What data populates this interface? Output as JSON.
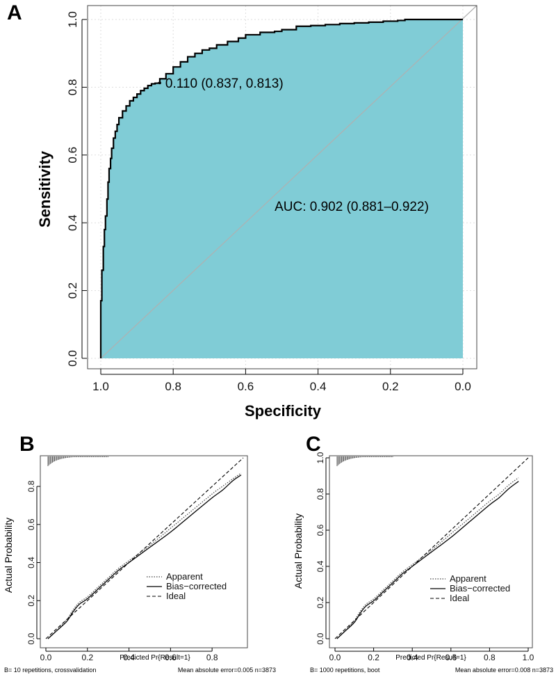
{
  "chart_data": [
    {
      "panel": "A",
      "type": "line",
      "subtype": "roc",
      "title": "",
      "xlabel": "Specificity",
      "ylabel": "Sensitivity",
      "xlim": [
        1.0,
        0.0
      ],
      "ylim": [
        0.0,
        1.0
      ],
      "x_ticks": [
        "1.0",
        "0.8",
        "0.6",
        "0.4",
        "0.2",
        "0.0"
      ],
      "y_ticks": [
        "0.0",
        "0.2",
        "0.4",
        "0.6",
        "0.8",
        "1.0"
      ],
      "grid": true,
      "fill_color": "#80ccd6",
      "diagonal_color": "#b0b0b0",
      "series": [
        {
          "name": "ROC",
          "x": [
            1.0,
            0.997,
            0.993,
            0.99,
            0.987,
            0.983,
            0.98,
            0.977,
            0.973,
            0.97,
            0.965,
            0.96,
            0.955,
            0.95,
            0.94,
            0.93,
            0.92,
            0.91,
            0.9,
            0.89,
            0.88,
            0.87,
            0.86,
            0.85,
            0.84,
            0.837,
            0.82,
            0.8,
            0.78,
            0.76,
            0.74,
            0.72,
            0.7,
            0.68,
            0.65,
            0.62,
            0.6,
            0.56,
            0.52,
            0.5,
            0.46,
            0.42,
            0.38,
            0.34,
            0.3,
            0.26,
            0.22,
            0.18,
            0.16,
            0.14,
            0.1,
            0.05,
            0.0
          ],
          "y": [
            0.0,
            0.17,
            0.26,
            0.33,
            0.38,
            0.42,
            0.47,
            0.52,
            0.56,
            0.59,
            0.62,
            0.65,
            0.67,
            0.69,
            0.71,
            0.73,
            0.745,
            0.76,
            0.77,
            0.78,
            0.79,
            0.797,
            0.805,
            0.81,
            0.812,
            0.813,
            0.825,
            0.84,
            0.86,
            0.875,
            0.89,
            0.9,
            0.91,
            0.915,
            0.925,
            0.935,
            0.945,
            0.955,
            0.962,
            0.965,
            0.97,
            0.98,
            0.982,
            0.985,
            0.988,
            0.99,
            0.992,
            0.995,
            0.997,
            1.0,
            1.0,
            1.0,
            1.0
          ]
        }
      ],
      "annotations": {
        "threshold": "0.110 (0.837, 0.813)",
        "threshold_point": [
          0.837,
          0.813
        ],
        "auc": "AUC: 0.902 (0.881–0.922)",
        "auc_anchor": [
          0.52,
          0.45
        ]
      }
    },
    {
      "panel": "B",
      "type": "line",
      "subtype": "calibration",
      "xlabel": "Predicted Pr{Result=1}",
      "ylabel": "Actual Probability",
      "xlim": [
        0.0,
        0.95
      ],
      "ylim": [
        0.0,
        0.95
      ],
      "x_ticks": [
        "0.0",
        "0.2",
        "0.4",
        "0.6",
        "0.8"
      ],
      "y_ticks": [
        "0.0",
        "0.2",
        "0.4",
        "0.6",
        "0.8"
      ],
      "legend_position": "bottom-right",
      "legend": [
        "Apparent",
        "Bias−corrected",
        "Ideal"
      ],
      "series": [
        {
          "name": "Apparent",
          "x": [
            0.01,
            0.05,
            0.1,
            0.13,
            0.16,
            0.2,
            0.25,
            0.3,
            0.35,
            0.4,
            0.5,
            0.6,
            0.7,
            0.8,
            0.85,
            0.9,
            0.94
          ],
          "y": [
            0.0,
            0.04,
            0.1,
            0.15,
            0.19,
            0.22,
            0.27,
            0.32,
            0.37,
            0.41,
            0.49,
            0.58,
            0.67,
            0.76,
            0.8,
            0.84,
            0.87
          ]
        },
        {
          "name": "Bias−corrected",
          "x": [
            0.01,
            0.05,
            0.1,
            0.13,
            0.16,
            0.2,
            0.25,
            0.3,
            0.35,
            0.4,
            0.5,
            0.6,
            0.7,
            0.8,
            0.85,
            0.9,
            0.94
          ],
          "y": [
            0.0,
            0.04,
            0.09,
            0.14,
            0.18,
            0.21,
            0.26,
            0.31,
            0.36,
            0.4,
            0.48,
            0.56,
            0.65,
            0.74,
            0.78,
            0.83,
            0.86
          ]
        },
        {
          "name": "Ideal",
          "x": [
            0.0,
            0.95
          ],
          "y": [
            0.0,
            0.95
          ]
        }
      ],
      "rug": "0.0–0.3",
      "footer_left": "B= 10 repetitions, crossvalidation",
      "footer_right": "Mean absolute error=0.005 n=3873"
    },
    {
      "panel": "C",
      "type": "line",
      "subtype": "calibration",
      "xlabel": "Predicted Pr{Result=1}",
      "ylabel": "Actual Probability",
      "xlim": [
        0.0,
        1.0
      ],
      "ylim": [
        0.0,
        1.0
      ],
      "x_ticks": [
        "0.0",
        "0.2",
        "0.4",
        "0.6",
        "0.8",
        "1.0"
      ],
      "y_ticks": [
        "0.0",
        "0.2",
        "0.4",
        "0.6",
        "0.8",
        "1.0"
      ],
      "legend_position": "bottom-right",
      "legend": [
        "Apparent",
        "Bias−corrected",
        "Ideal"
      ],
      "series": [
        {
          "name": "Apparent",
          "x": [
            0.01,
            0.05,
            0.1,
            0.13,
            0.16,
            0.2,
            0.25,
            0.3,
            0.35,
            0.4,
            0.5,
            0.6,
            0.7,
            0.8,
            0.85,
            0.9,
            0.95
          ],
          "y": [
            0.0,
            0.04,
            0.1,
            0.15,
            0.19,
            0.22,
            0.27,
            0.32,
            0.37,
            0.41,
            0.49,
            0.58,
            0.67,
            0.76,
            0.8,
            0.85,
            0.89
          ]
        },
        {
          "name": "Bias−corrected",
          "x": [
            0.01,
            0.05,
            0.1,
            0.13,
            0.16,
            0.2,
            0.25,
            0.3,
            0.35,
            0.4,
            0.5,
            0.6,
            0.7,
            0.8,
            0.85,
            0.9,
            0.95
          ],
          "y": [
            0.0,
            0.04,
            0.09,
            0.14,
            0.18,
            0.21,
            0.26,
            0.31,
            0.36,
            0.4,
            0.48,
            0.56,
            0.65,
            0.74,
            0.78,
            0.83,
            0.87
          ]
        },
        {
          "name": "Ideal",
          "x": [
            0.0,
            1.0
          ],
          "y": [
            0.0,
            1.0
          ]
        }
      ],
      "rug": "0.0–0.3",
      "footer_left": "B= 1000 repetitions, boot",
      "footer_right": "Mean absolute error=0.008 n=3873"
    }
  ]
}
